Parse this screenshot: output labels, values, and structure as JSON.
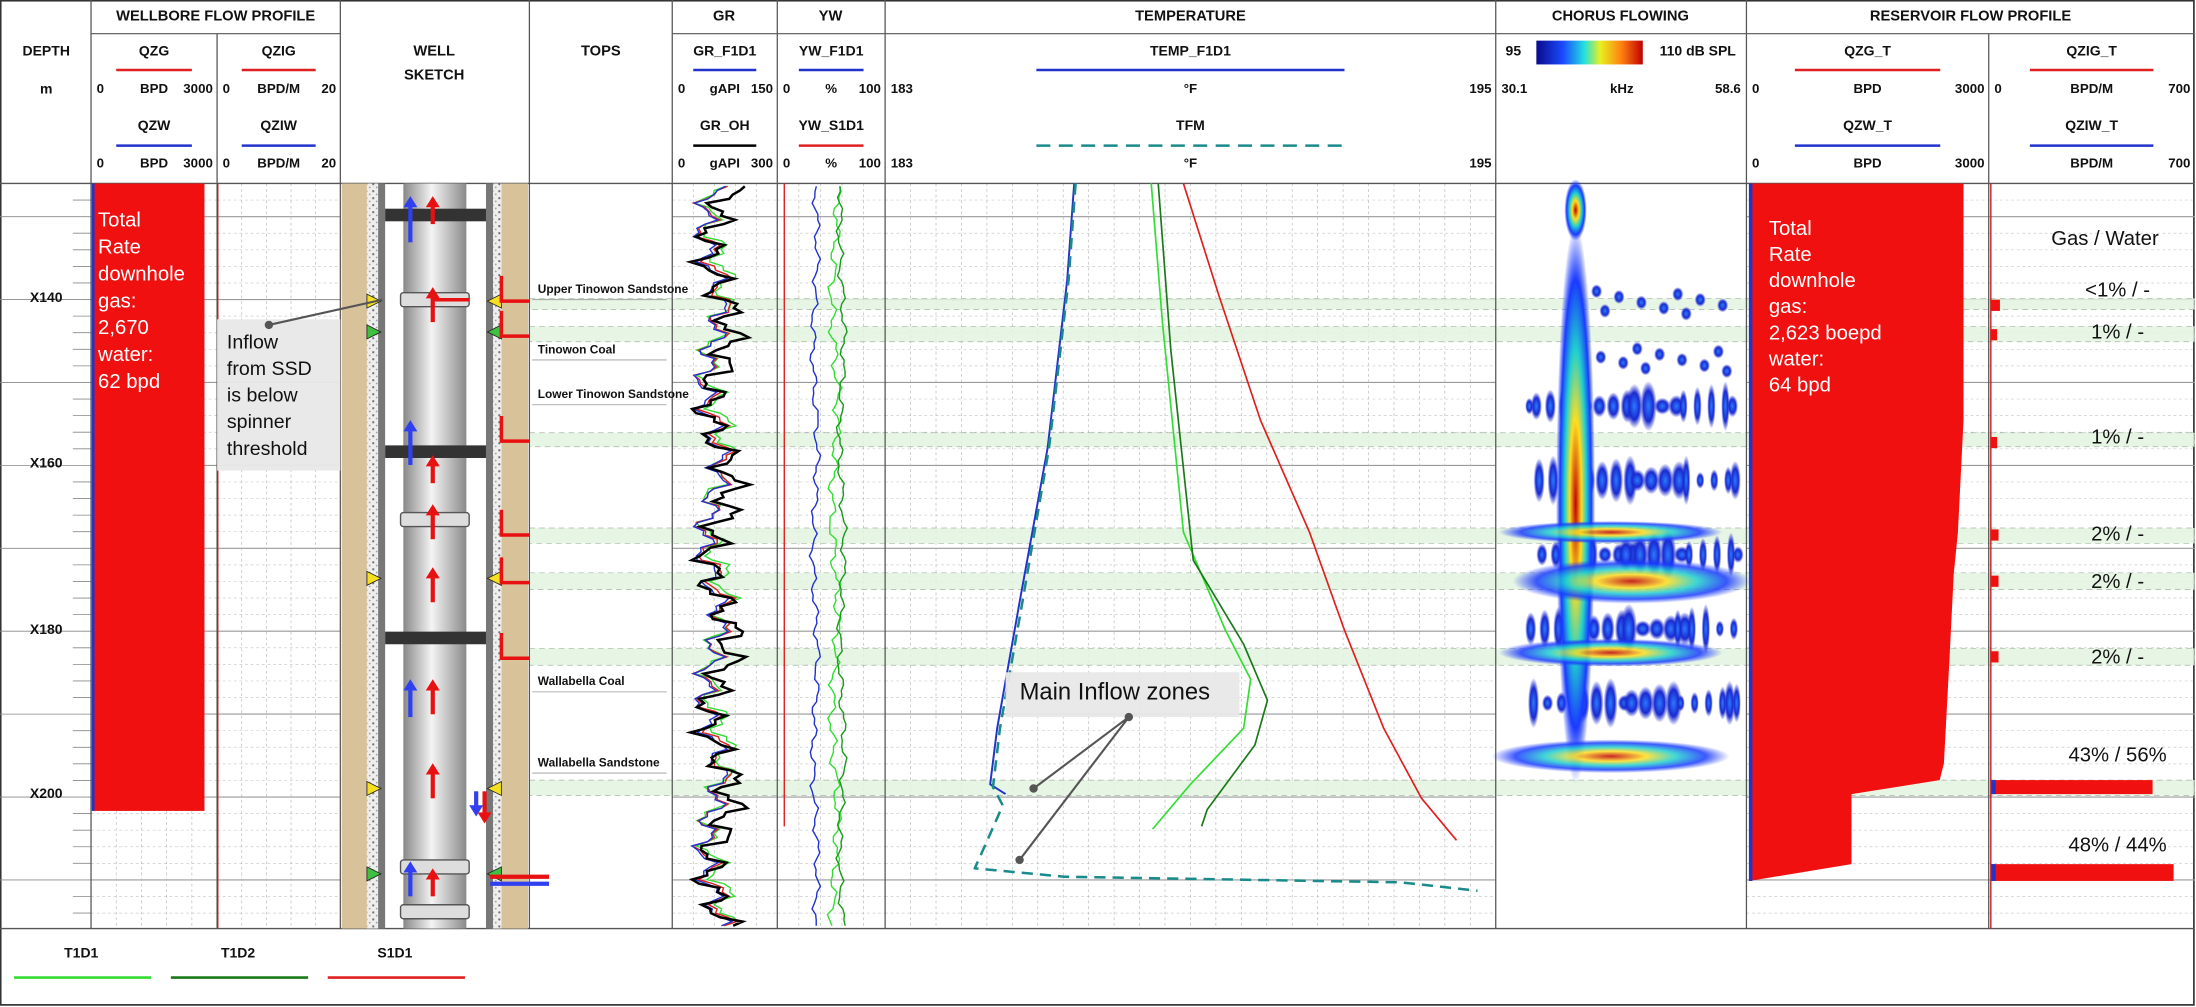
{
  "tracks": {
    "depth": {
      "title": "DEPTH",
      "unit": "m",
      "labels": [
        "X140",
        "X160",
        "X180",
        "X200"
      ]
    },
    "wellbore": {
      "title": "WELLBORE FLOW PROFILE",
      "curves": [
        {
          "name": "QZG",
          "color": "#e02020",
          "min": 0,
          "unit": "BPD",
          "max": 3000
        },
        {
          "name": "QZW",
          "color": "#2233cc",
          "min": 0,
          "unit": "BPD",
          "max": 3000
        },
        {
          "name": "QZIG",
          "color": "#e02020",
          "min": 0,
          "unit": "BPD/M",
          "max": 20
        },
        {
          "name": "QZIW",
          "color": "#2233cc",
          "min": 0,
          "unit": "BPD/M",
          "max": 20
        }
      ]
    },
    "sketch": {
      "title": [
        "WELL",
        "SKETCH"
      ]
    },
    "tops": {
      "title": "TOPS",
      "names": [
        "Upper Tinowon Sandstone",
        "Tinowon Coal",
        "Lower Tinowon Sandstone",
        "Wallabella Coal",
        "Wallabella Sandstone"
      ]
    },
    "gr": {
      "title": "GR",
      "curves": [
        {
          "name": "GR_F1D1",
          "color": "#2233cc",
          "min": 0,
          "unit": "gAPI",
          "max": 150
        },
        {
          "name": "GR_OH",
          "color": "#000000",
          "min": 0,
          "unit": "gAPI",
          "max": 300
        }
      ]
    },
    "yw": {
      "title": "YW",
      "curves": [
        {
          "name": "YW_F1D1",
          "color": "#2233cc",
          "min": 0,
          "unit": "%",
          "max": 100
        },
        {
          "name": "YW_S1D1",
          "color": "#e02020",
          "min": 0,
          "unit": "%",
          "max": 100
        }
      ]
    },
    "temperature": {
      "title": "TEMPERATURE",
      "curves": [
        {
          "name": "TEMP_F1D1",
          "color": "#2233cc",
          "min": 183,
          "unit": "°F",
          "max": 195,
          "style": "solid"
        },
        {
          "name": "TFM",
          "color": "#1a8a8a",
          "min": 183,
          "unit": "°F",
          "max": 195,
          "style": "dashed"
        }
      ]
    },
    "chorus": {
      "title": "CHORUS FLOWING",
      "spl_min": 95,
      "spl_max": "110 dB SPL",
      "freq_min": 30.1,
      "freq_unit": "kHz",
      "freq_max": 58.6
    },
    "reservoir": {
      "title": "RESERVOIR FLOW PROFILE",
      "curves": [
        {
          "name": "QZG_T",
          "color": "#e02020",
          "min": 0,
          "unit": "BPD",
          "max": 3000
        },
        {
          "name": "QZW_T",
          "color": "#2233cc",
          "min": 0,
          "unit": "BPD",
          "max": 3000
        },
        {
          "name": "QZIG_T",
          "color": "#e02020",
          "min": 0,
          "unit": "BPD/M",
          "max": 700
        },
        {
          "name": "QZIW_T",
          "color": "#2233cc",
          "unit": "BPD/M",
          "max": 700
        }
      ]
    }
  },
  "annotations": {
    "wellbore_total": [
      "Total",
      "Rate",
      "downhole",
      "gas:",
      "2,670",
      "water:",
      "62 bpd"
    ],
    "ssd_note": [
      "Inflow",
      "from SSD",
      "is below",
      "spinner",
      "threshold"
    ],
    "main_inflow": "Main Inflow zones",
    "reservoir_total": [
      "Total",
      "Rate",
      "downhole",
      "gas:",
      "2,623 boepd",
      "water:",
      "64 bpd"
    ],
    "gas_water_title": "Gas / Water",
    "gas_water": [
      "<1% / -",
      "1% / -",
      "1% / -",
      "2% / -",
      "2% / -",
      "2% / -",
      "43% / 56%",
      "48% / 44%"
    ]
  },
  "legend": [
    {
      "name": "T1D1",
      "color": "#33dd33"
    },
    {
      "name": "T1D2",
      "color": "#1a7a1a"
    },
    {
      "name": "S1D1",
      "color": "#e02020"
    }
  ]
}
